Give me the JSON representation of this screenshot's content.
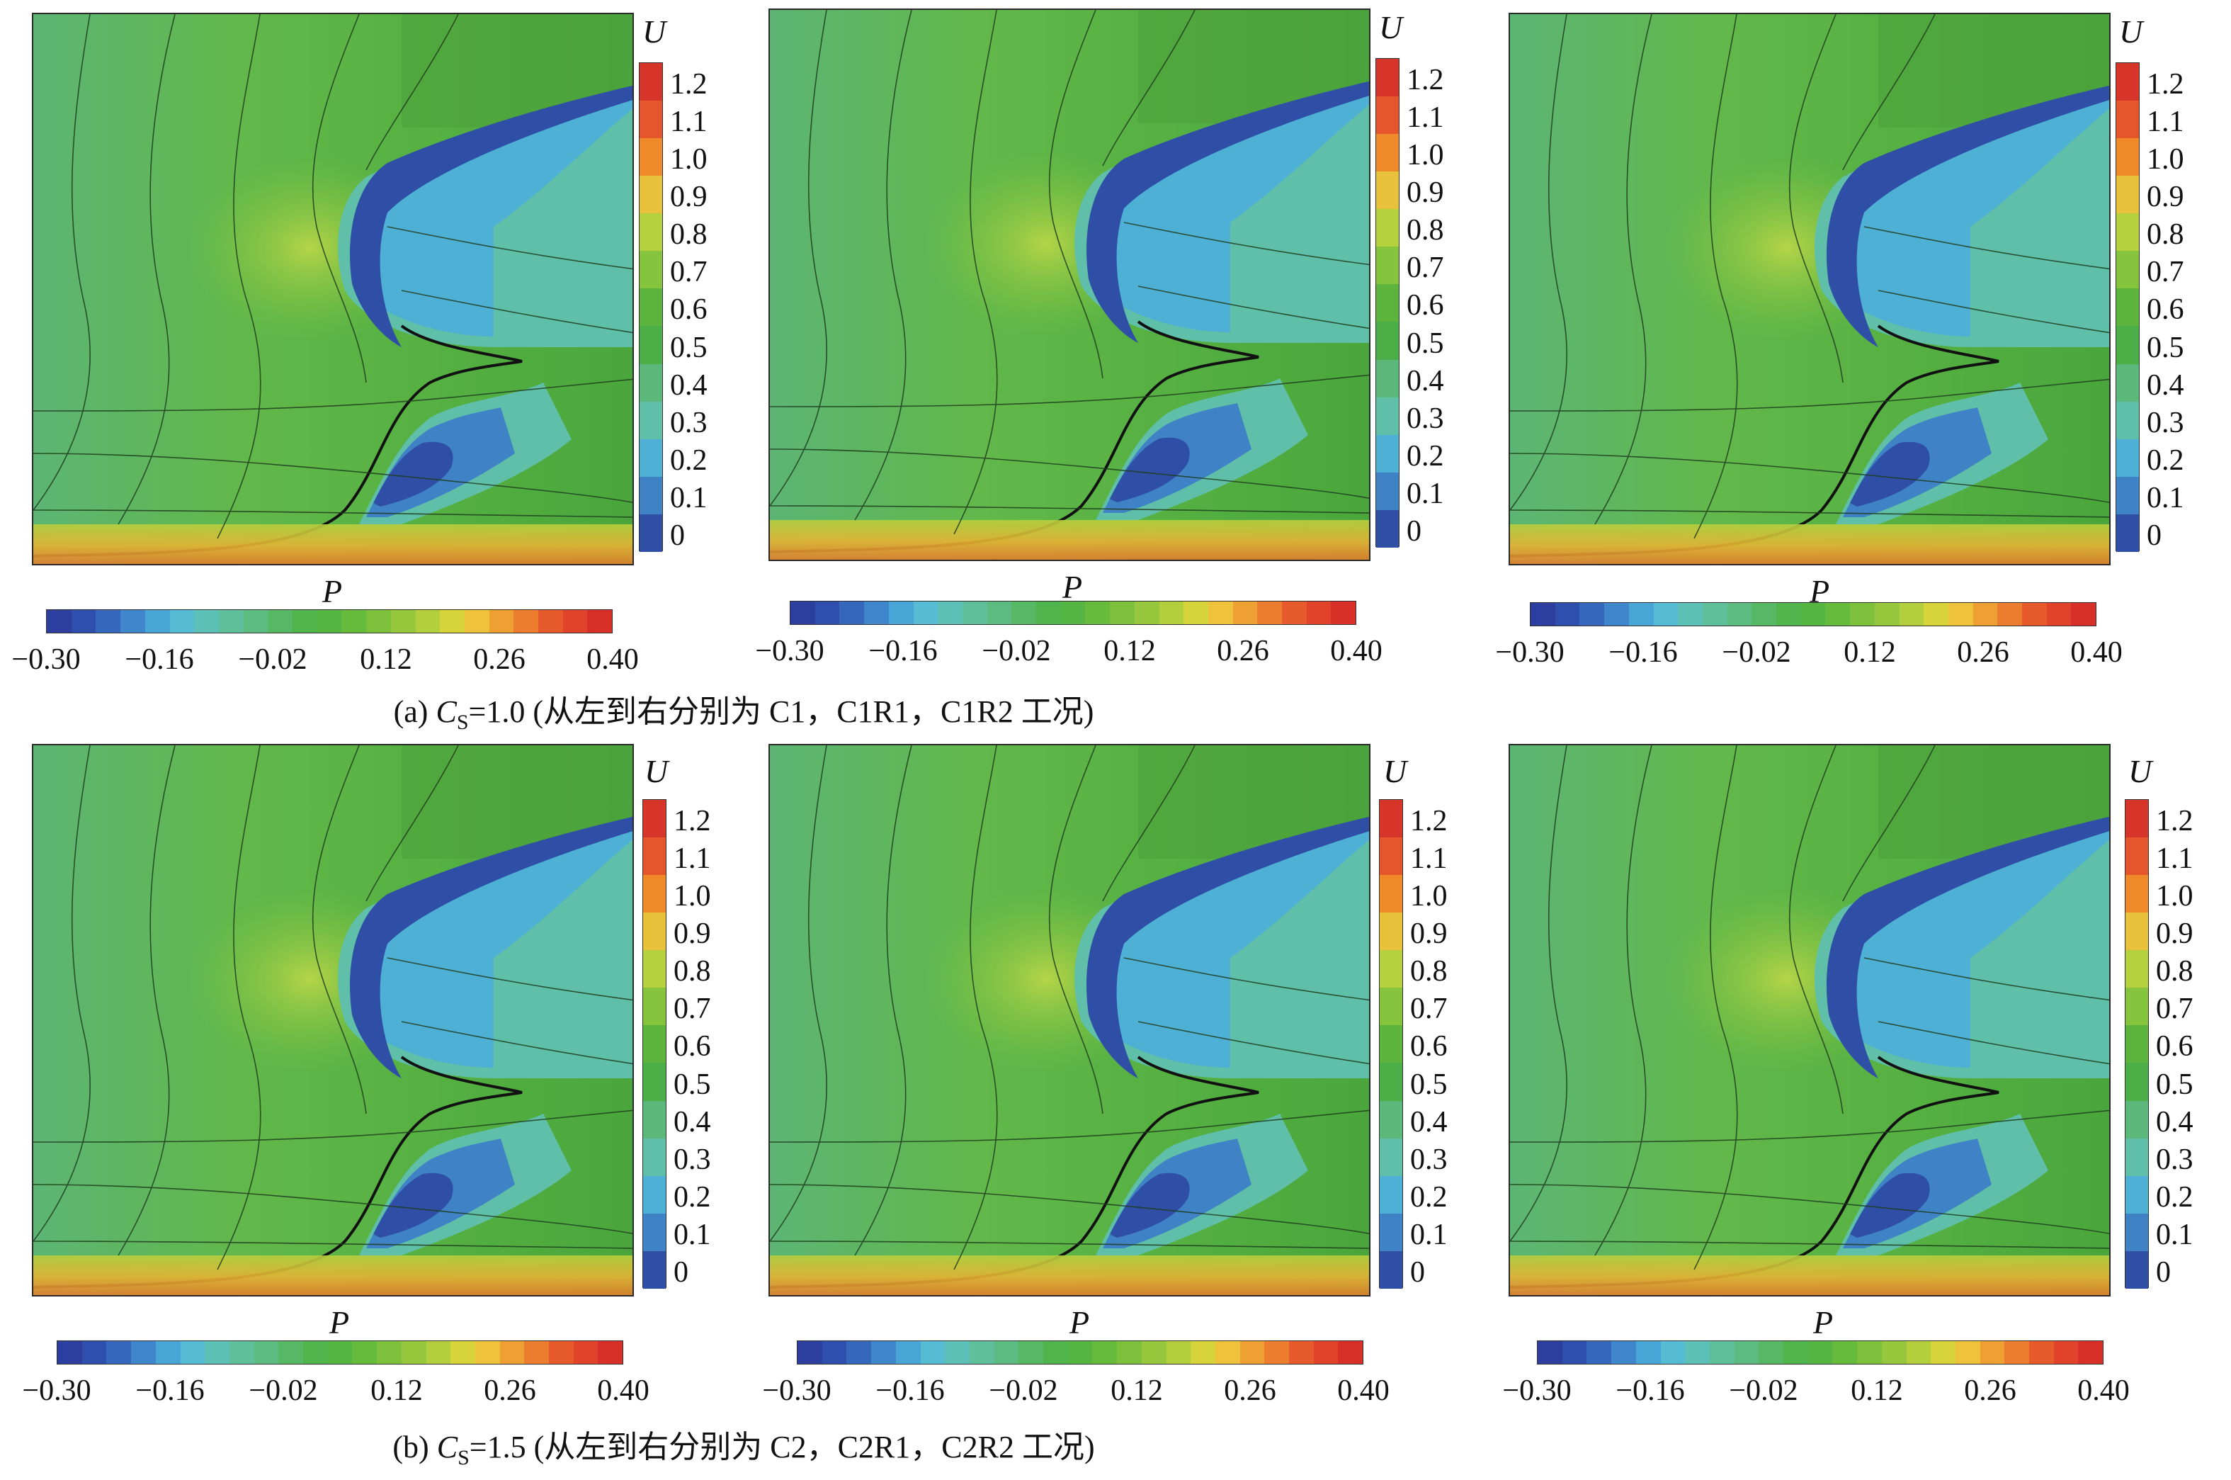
{
  "u_colorbar": {
    "label": "U",
    "ticks": [
      "1.2",
      "1.1",
      "1.0",
      "0.9",
      "0.8",
      "0.7",
      "0.6",
      "0.5",
      "0.4",
      "0.3",
      "0.2",
      "0.1",
      "0"
    ],
    "colors": [
      "#d8352a",
      "#e5562c",
      "#ee8a2a",
      "#e8c23a",
      "#b5d13e",
      "#86c43e",
      "#5db43c",
      "#4cae46",
      "#5cb77a",
      "#5fbfa8",
      "#4fb0d6",
      "#3f82c6",
      "#2f4fa6"
    ]
  },
  "p_colorbar": {
    "label": "P",
    "ticks": [
      "−0.30",
      "−0.16",
      "−0.02",
      "0.12",
      "0.26",
      "0.40"
    ],
    "colors": [
      "#2d3f9e",
      "#2f4fae",
      "#3568bc",
      "#3f86cc",
      "#48a6d6",
      "#55bcd4",
      "#5cc0b6",
      "#5fbf9a",
      "#5cbb80",
      "#56b765",
      "#4fb44c",
      "#55b542",
      "#66ba3c",
      "#7cc03c",
      "#97c73c",
      "#b4cf3c",
      "#d6d43a",
      "#eec23a",
      "#efa033",
      "#ec7d2e",
      "#e65a2b",
      "#e0422a",
      "#d82f28"
    ]
  },
  "panels": [
    {
      "case": "C1"
    },
    {
      "case": "C1R1"
    },
    {
      "case": "C1R2"
    },
    {
      "case": "C2"
    },
    {
      "case": "C2R1"
    },
    {
      "case": "C2R2"
    }
  ],
  "captions": {
    "a": {
      "prefix": "(a) ",
      "symbol": "C",
      "subscript": "S",
      "rest": "=1.0 (从左到右分别为 C1，C1R1，C1R2 工况)"
    },
    "b": {
      "prefix": "(b) ",
      "symbol": "C",
      "subscript": "S",
      "rest": "=1.5 (从左到右分别为 C2，C2R1，C2R2 工况)"
    }
  }
}
